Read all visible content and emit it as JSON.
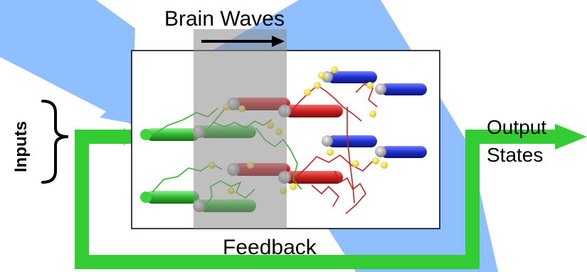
{
  "diagram": {
    "title": "Brain Waves",
    "inputs_label": "Inputs",
    "output_label_line1": "Output",
    "output_label_line2": "States",
    "feedback_label": "Feedback"
  },
  "colors": {
    "background_shape": "#8fbfff",
    "feedback_loop": "#33cc33",
    "window_band": "#b8b8b8",
    "neuron_green": "#2fb52f",
    "neuron_red": "#cc1f1f",
    "neuron_blue": "#1f2fcc",
    "synapse_yellow": "#f0e020",
    "arrow_black": "#000000"
  }
}
